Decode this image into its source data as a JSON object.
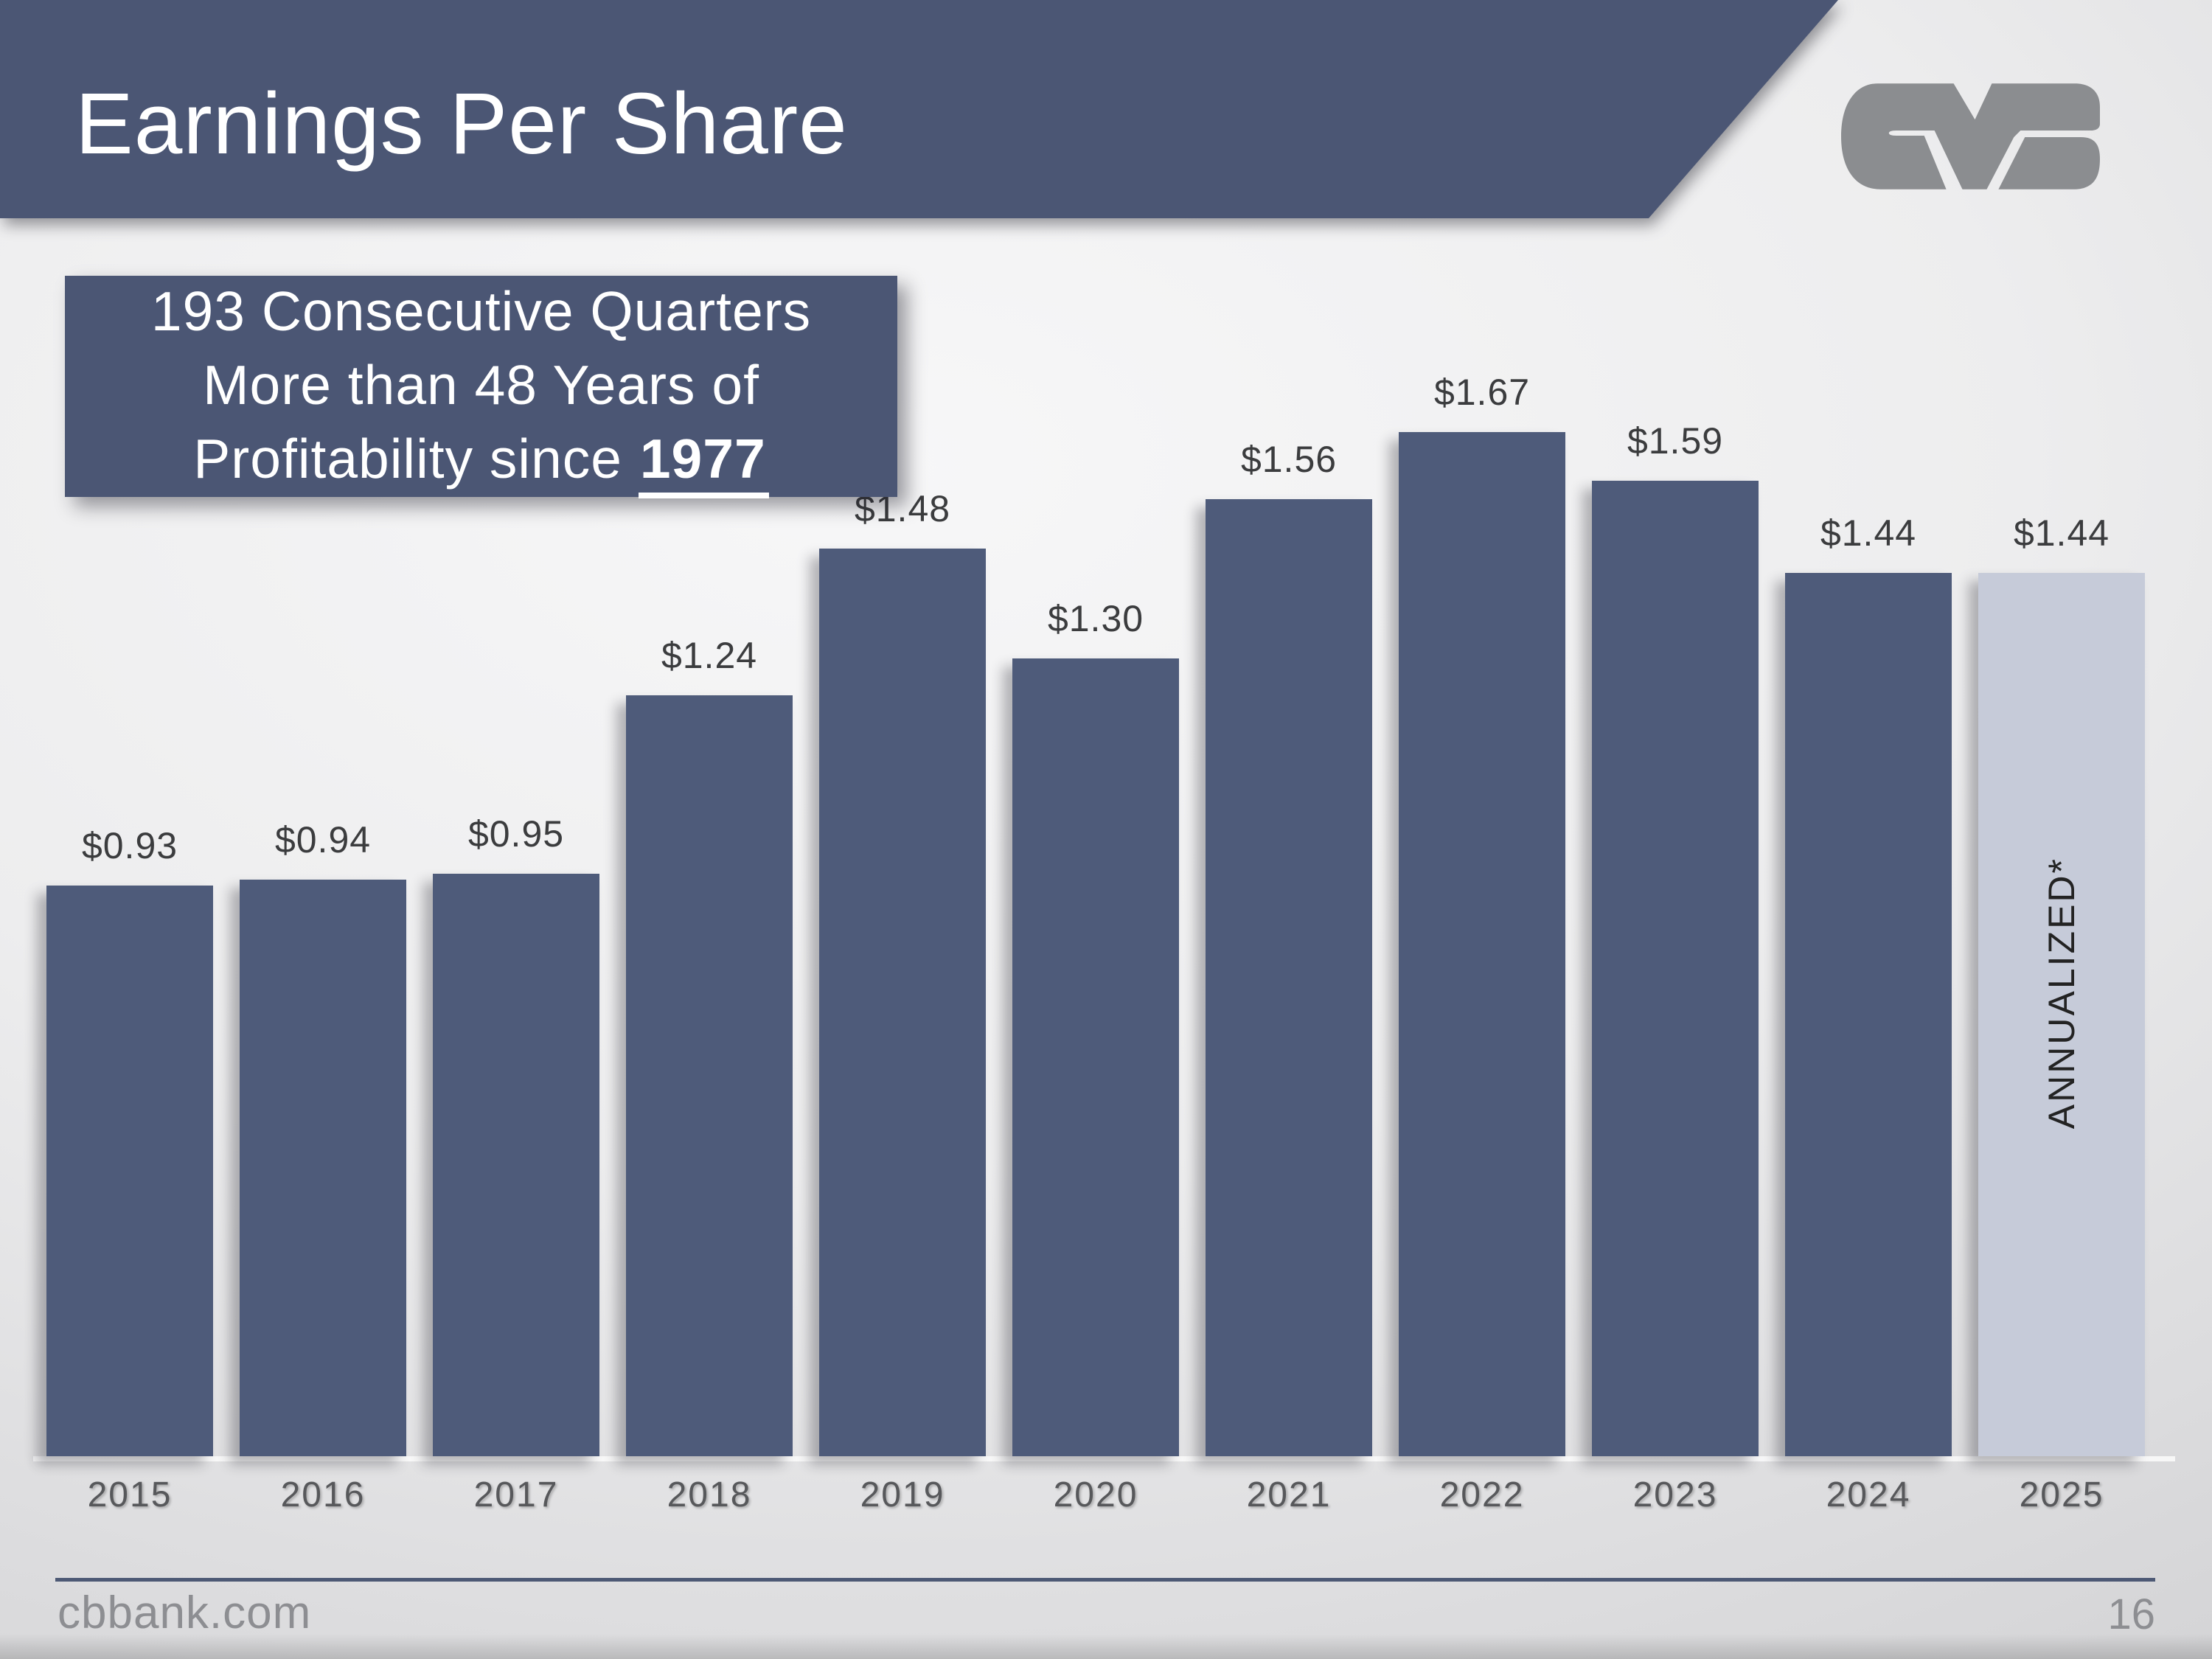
{
  "header": {
    "title": "Earnings Per Share"
  },
  "logo": {
    "name": "cvb-logo",
    "color": "#8b8d90"
  },
  "callout": {
    "line1": "193 Consecutive Quarters",
    "line2": "More than 48 Years of",
    "line3_prefix": "Profitability since ",
    "line3_highlight": "1977"
  },
  "chart_data": {
    "type": "bar",
    "title": "Earnings Per Share",
    "categories": [
      "2015",
      "2016",
      "2017",
      "2018",
      "2019",
      "2020",
      "2021",
      "2022",
      "2023",
      "2024",
      "2025"
    ],
    "values": [
      0.93,
      0.94,
      0.95,
      1.24,
      1.48,
      1.3,
      1.56,
      1.67,
      1.59,
      1.44,
      1.44
    ],
    "labels": [
      "$0.93",
      "$0.94",
      "$0.95",
      "$1.24",
      "$1.48",
      "$1.30",
      "$1.56",
      "$1.67",
      "$1.59",
      "$1.44",
      "$1.44"
    ],
    "xlabel": "",
    "ylabel": "",
    "ylim": [
      0,
      1.8
    ],
    "grid": false,
    "legend": false,
    "bar_color": "#4e5b7a",
    "highlight_index": 10,
    "highlight_color": "#c6cbd9",
    "highlight_annotation": "ANNUALIZED*"
  },
  "footer": {
    "website": "cbbank.com",
    "page_number": "16",
    "divider_color": "#4d5975"
  }
}
